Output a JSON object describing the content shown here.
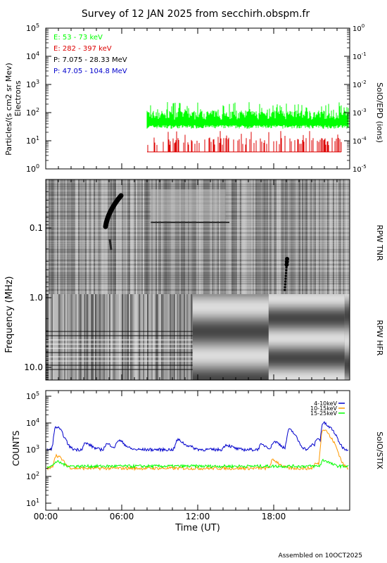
{
  "title": "Survey of 12 JAN 2025 from secchirh.obspm.fr",
  "footer": "Assembled on 10OCT2025",
  "xaxis": {
    "label": "Time (UT)",
    "ticks": [
      "00:00",
      "06:00",
      "12:00",
      "18:00"
    ],
    "range_hours": [
      0,
      24
    ]
  },
  "chart_data": [
    {
      "type": "line",
      "panel": "epd",
      "ylabel": "Particles/(s cm2 sr Mev)",
      "ylabel2": "Electrons",
      "right_label": "SolO/EPD (ions)",
      "yscale": "log",
      "ylim": [
        1,
        100000
      ],
      "y_ticks": [
        "10^0",
        "10^1",
        "10^2",
        "10^3",
        "10^4",
        "10^5"
      ],
      "y2lim": [
        1e-05,
        1
      ],
      "y2_ticks": [
        "10^-5",
        "10^-4",
        "10^-3",
        "10^-2",
        "10^-1",
        "10^0"
      ],
      "series": [
        {
          "name": "E: 53 - 73 keV",
          "color": "#00ff00",
          "start_hour": 8.0,
          "level": 40,
          "min": 30,
          "max": 250
        },
        {
          "name": "E: 282 - 397 keV",
          "color": "#dd0000",
          "start_hour": 8.0,
          "level": 10,
          "min": 4,
          "max": 22
        },
        {
          "name": "P: 7.075 - 28.33 MeV",
          "color": "#000000"
        },
        {
          "name": "P: 47.05 - 104.8 MeV",
          "color": "#0000cc"
        }
      ]
    },
    {
      "type": "heatmap",
      "panel": "rpw",
      "ylabel": "Frequency (MHz)",
      "y_ticks": [
        "0.1",
        "1.0",
        "10.0"
      ],
      "right_labels": [
        "RPW TNR",
        "RPW HFR"
      ]
    },
    {
      "type": "line",
      "panel": "stix",
      "ylabel": "COUNTS",
      "right_label": "SolO/STIX",
      "yscale": "log",
      "ylim": [
        10,
        100000
      ],
      "y_ticks": [
        "10^1",
        "10^2",
        "10^3",
        "10^4",
        "10^5"
      ],
      "series": [
        {
          "name": "4-10keV",
          "color": "#0000cc",
          "base": 1000,
          "peaks": [
            [
              0.8,
              7000
            ],
            [
              3.1,
              1700
            ],
            [
              4.8,
              1600
            ],
            [
              5.7,
              2200
            ],
            [
              10.4,
              2300
            ],
            [
              11.0,
              1500
            ],
            [
              14.2,
              1500
            ],
            [
              17.0,
              1500
            ],
            [
              18.0,
              2000
            ],
            [
              19.2,
              5500
            ],
            [
              21.0,
              1500
            ],
            [
              21.4,
              2500
            ],
            [
              21.9,
              10000
            ],
            [
              22.3,
              7000
            ]
          ]
        },
        {
          "name": "10-15keV",
          "color": "#ff9900",
          "base": 200,
          "peaks": [
            [
              0.8,
              600
            ],
            [
              17.9,
              400
            ],
            [
              21.3,
              300
            ],
            [
              21.9,
              6000
            ],
            [
              22.3,
              3000
            ]
          ]
        },
        {
          "name": "15-25keV",
          "color": "#00ff00",
          "base": 240,
          "peaks": [
            [
              0.8,
              350
            ],
            [
              21.9,
              400
            ]
          ]
        }
      ]
    }
  ]
}
